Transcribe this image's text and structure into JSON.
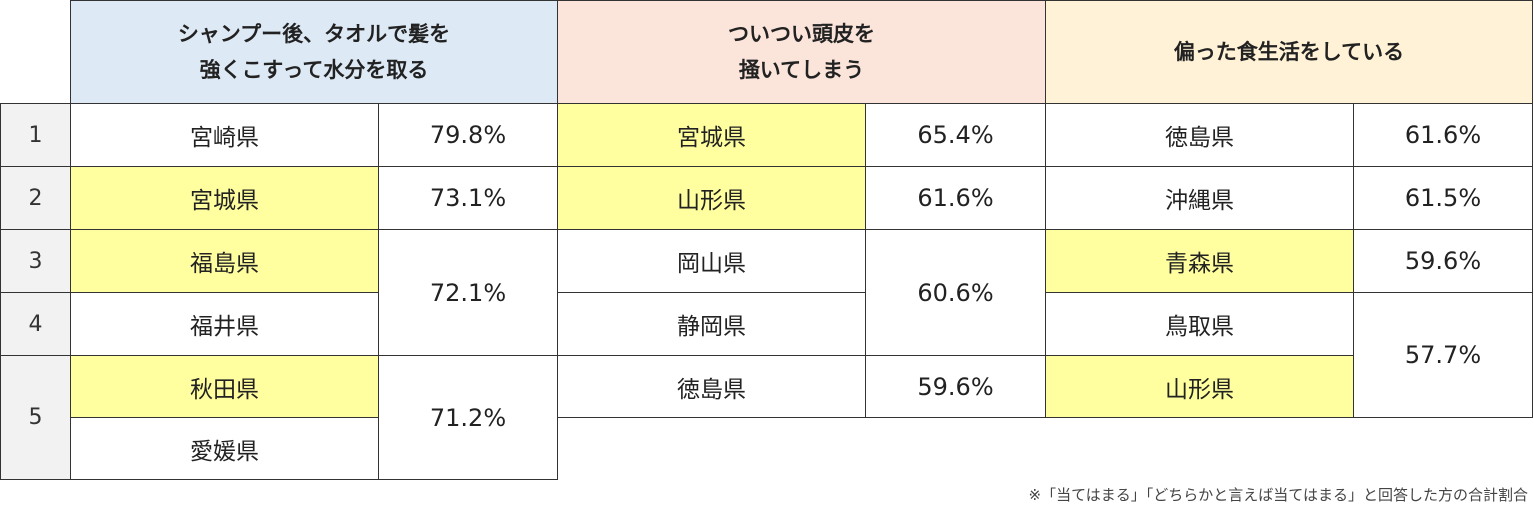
{
  "headers": [
    "シャンプー後、タオルで髪を\n強くこすって水分を取る",
    "ついつい頭皮を\n掻いてしまう",
    "偏った食生活をしている"
  ],
  "ranks": [
    "1",
    "2",
    "3",
    "4",
    "5"
  ],
  "colors": {
    "header_blue": "#dde9f5",
    "header_pink": "#fbe4da",
    "header_cream": "#fff2d6",
    "highlight": "#ffff9f",
    "rank_bg": "#f2f2f2"
  },
  "sections": [
    {
      "prefs": [
        {
          "name": "宮崎県",
          "highlight": false
        },
        {
          "name": "宮城県",
          "highlight": true
        },
        {
          "name": "福島県",
          "highlight": true
        },
        {
          "name": "福井県",
          "highlight": false
        },
        {
          "name": "秋田県",
          "highlight": true
        },
        {
          "name": "愛媛県",
          "highlight": false
        }
      ],
      "values": [
        "79.8%",
        "73.1%",
        "72.1%",
        "71.2%"
      ]
    },
    {
      "prefs": [
        {
          "name": "宮城県",
          "highlight": true
        },
        {
          "name": "山形県",
          "highlight": true
        },
        {
          "name": "岡山県",
          "highlight": false
        },
        {
          "name": "静岡県",
          "highlight": false
        },
        {
          "name": "徳島県",
          "highlight": false
        }
      ],
      "values": [
        "65.4%",
        "61.6%",
        "60.6%",
        "59.6%"
      ]
    },
    {
      "prefs": [
        {
          "name": "徳島県",
          "highlight": false
        },
        {
          "name": "沖縄県",
          "highlight": false
        },
        {
          "name": "青森県",
          "highlight": true
        },
        {
          "name": "鳥取県",
          "highlight": false
        },
        {
          "name": "山形県",
          "highlight": true
        }
      ],
      "values": [
        "61.6%",
        "61.5%",
        "59.6%",
        "57.7%"
      ]
    }
  ],
  "footnote": "※「当てはまる」「どちらかと言えば当てはまる」と回答した方の合計割合"
}
